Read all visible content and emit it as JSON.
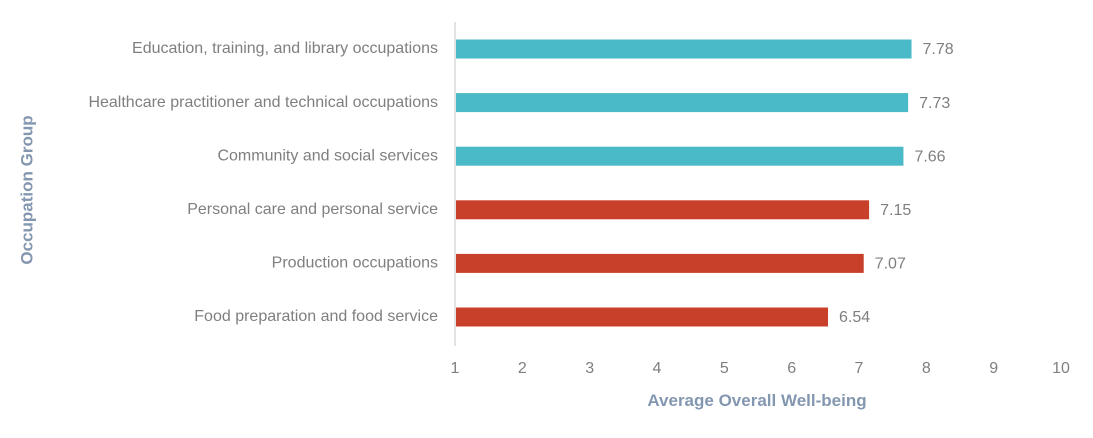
{
  "chart_data": {
    "type": "bar",
    "orientation": "horizontal",
    "title": "",
    "xlabel": "Average Overall Well-being",
    "ylabel": "Occupation Group",
    "xlim": [
      1,
      10
    ],
    "xticks": [
      "1",
      "2",
      "3",
      "4",
      "5",
      "6",
      "7",
      "8",
      "9",
      "10"
    ],
    "grid": false,
    "legend": "none",
    "categories": [
      "Education, training, and library occupations",
      "Healthcare practitioner and technical occupations",
      "Community and social services",
      "Personal care and personal service",
      "Production occupations",
      "Food preparation and food service"
    ],
    "values": [
      7.78,
      7.73,
      7.66,
      7.15,
      7.07,
      6.54
    ],
    "value_labels": [
      "7.78",
      "7.73",
      "7.66",
      "7.15",
      "7.07",
      "6.54"
    ],
    "bar_colors": [
      "#4bbac8",
      "#4bbac8",
      "#4bbac8",
      "#c9402a",
      "#c9402a",
      "#c9402a"
    ]
  },
  "colors": {
    "top_group": "#4bbac8",
    "bottom_group": "#c9402a",
    "text": "#7f7f7f",
    "axis_title": "#8497b0",
    "axis_line": "#d9d9d9"
  }
}
